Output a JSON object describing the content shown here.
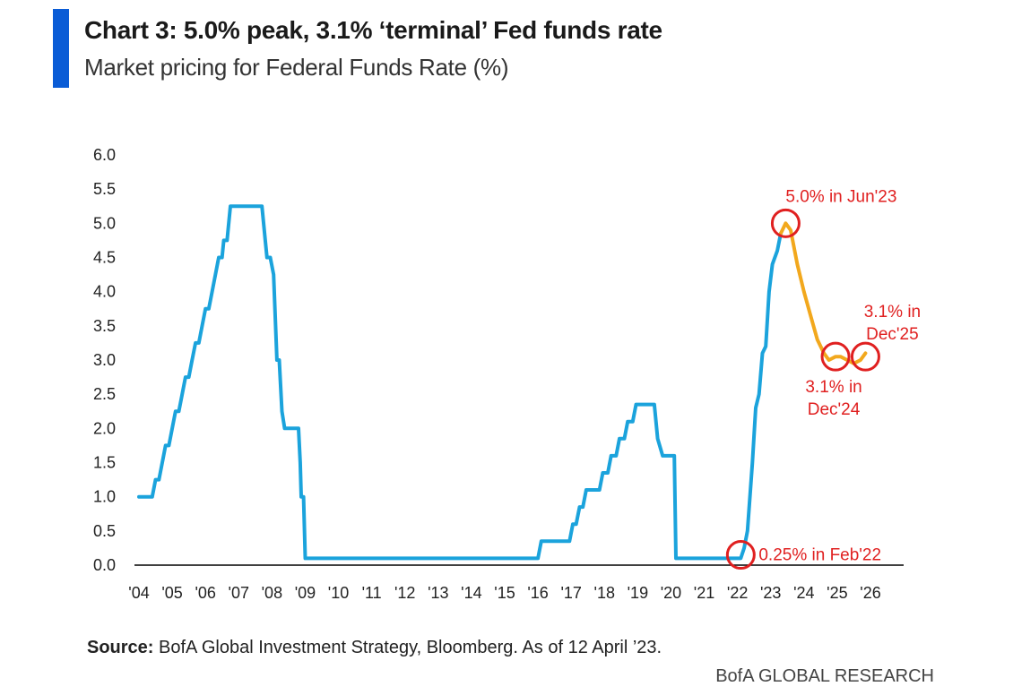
{
  "header": {
    "title": "Chart 3: 5.0% peak, 3.1% ‘terminal’ Fed funds rate",
    "subtitle": "Market pricing for Federal Funds Rate (%)"
  },
  "footer": {
    "source_label": "Source:",
    "source_text": "BofA Global Investment Strategy, Bloomberg. As of 12 April ’23.",
    "brand": "BofA GLOBAL RESEARCH"
  },
  "colors": {
    "accent": "#0a5cd6",
    "historical": "#1ba3dc",
    "projected": "#f2a81d",
    "annotation": "#e02020",
    "axis": "#000000"
  },
  "chart_data": {
    "type": "line",
    "ylim": [
      0,
      6
    ],
    "xlim": [
      2004,
      2026.6
    ],
    "yticks": [
      "0.0",
      "0.5",
      "1.0",
      "1.5",
      "2.0",
      "2.5",
      "3.0",
      "3.5",
      "4.0",
      "4.5",
      "5.0",
      "5.5",
      "6.0"
    ],
    "xticks": [
      "'04",
      "'05",
      "'06",
      "'07",
      "'08",
      "'09",
      "'10",
      "'11",
      "'12",
      "'13",
      "'14",
      "'15",
      "'16",
      "'17",
      "'18",
      "'19",
      "'20",
      "'21",
      "'22",
      "'23",
      "'24",
      "'25",
      "'26"
    ],
    "grid": false,
    "series": [
      {
        "values": [
          [
            2004.0,
            1.0
          ],
          [
            2004.4,
            1.0
          ],
          [
            2004.5,
            1.25
          ],
          [
            2004.6,
            1.25
          ],
          [
            2004.7,
            1.5
          ],
          [
            2004.8,
            1.75
          ],
          [
            2004.9,
            1.75
          ],
          [
            2005.0,
            2.0
          ],
          [
            2005.1,
            2.25
          ],
          [
            2005.2,
            2.25
          ],
          [
            2005.3,
            2.5
          ],
          [
            2005.4,
            2.75
          ],
          [
            2005.5,
            2.75
          ],
          [
            2005.6,
            3.0
          ],
          [
            2005.7,
            3.25
          ],
          [
            2005.8,
            3.25
          ],
          [
            2005.9,
            3.5
          ],
          [
            2006.0,
            3.75
          ],
          [
            2006.1,
            3.75
          ],
          [
            2006.2,
            4.0
          ],
          [
            2006.3,
            4.25
          ],
          [
            2006.4,
            4.5
          ],
          [
            2006.5,
            4.5
          ],
          [
            2006.55,
            4.75
          ],
          [
            2006.65,
            4.75
          ],
          [
            2006.75,
            5.25
          ],
          [
            2007.7,
            5.25
          ],
          [
            2007.8,
            4.75
          ],
          [
            2007.85,
            4.5
          ],
          [
            2007.95,
            4.5
          ],
          [
            2008.05,
            4.25
          ],
          [
            2008.15,
            3.0
          ],
          [
            2008.22,
            3.0
          ],
          [
            2008.3,
            2.25
          ],
          [
            2008.38,
            2.0
          ],
          [
            2008.8,
            2.0
          ],
          [
            2008.85,
            1.5
          ],
          [
            2008.88,
            1.0
          ],
          [
            2008.95,
            1.0
          ],
          [
            2009.0,
            0.1
          ],
          [
            2016.0,
            0.1
          ],
          [
            2016.1,
            0.35
          ],
          [
            2016.95,
            0.35
          ],
          [
            2017.05,
            0.6
          ],
          [
            2017.15,
            0.6
          ],
          [
            2017.25,
            0.85
          ],
          [
            2017.35,
            0.85
          ],
          [
            2017.45,
            1.1
          ],
          [
            2017.85,
            1.1
          ],
          [
            2017.95,
            1.35
          ],
          [
            2018.1,
            1.35
          ],
          [
            2018.2,
            1.6
          ],
          [
            2018.35,
            1.6
          ],
          [
            2018.45,
            1.85
          ],
          [
            2018.6,
            1.85
          ],
          [
            2018.7,
            2.1
          ],
          [
            2018.85,
            2.1
          ],
          [
            2018.95,
            2.35
          ],
          [
            2019.5,
            2.35
          ],
          [
            2019.6,
            1.85
          ],
          [
            2019.75,
            1.6
          ],
          [
            2020.1,
            1.6
          ],
          [
            2020.15,
            0.1
          ],
          [
            2022.1,
            0.1
          ],
          [
            2022.2,
            0.25
          ],
          [
            2022.3,
            0.5
          ],
          [
            2022.45,
            1.5
          ],
          [
            2022.55,
            2.3
          ],
          [
            2022.65,
            2.5
          ],
          [
            2022.75,
            3.1
          ],
          [
            2022.85,
            3.2
          ],
          [
            2022.95,
            4.0
          ],
          [
            2023.05,
            4.4
          ],
          [
            2023.2,
            4.6
          ],
          [
            2023.3,
            4.85
          ]
        ]
      },
      {
        "values": [
          [
            2023.3,
            4.85
          ],
          [
            2023.45,
            5.0
          ],
          [
            2023.6,
            4.9
          ],
          [
            2023.8,
            4.4
          ],
          [
            2024.0,
            4.0
          ],
          [
            2024.2,
            3.65
          ],
          [
            2024.4,
            3.3
          ],
          [
            2024.6,
            3.1
          ],
          [
            2024.75,
            3.0
          ],
          [
            2024.95,
            3.05
          ],
          [
            2025.1,
            3.05
          ],
          [
            2025.3,
            3.0
          ],
          [
            2025.5,
            2.95
          ],
          [
            2025.7,
            3.0
          ],
          [
            2025.85,
            3.1
          ]
        ]
      }
    ],
    "annotations": [
      {
        "label_lines": [
          "5.0% in  Jun'23"
        ],
        "x": 2023.45,
        "y": 5.0
      },
      {
        "label_lines": [
          "3.1% in",
          "Dec'24"
        ],
        "x": 2024.95,
        "y": 3.05
      },
      {
        "label_lines": [
          "3.1% in",
          "Dec'25"
        ],
        "x": 2025.85,
        "y": 3.05
      },
      {
        "label_lines": [
          "0.25% in Feb'22"
        ],
        "x": 2022.1,
        "y": 0.15
      }
    ]
  }
}
